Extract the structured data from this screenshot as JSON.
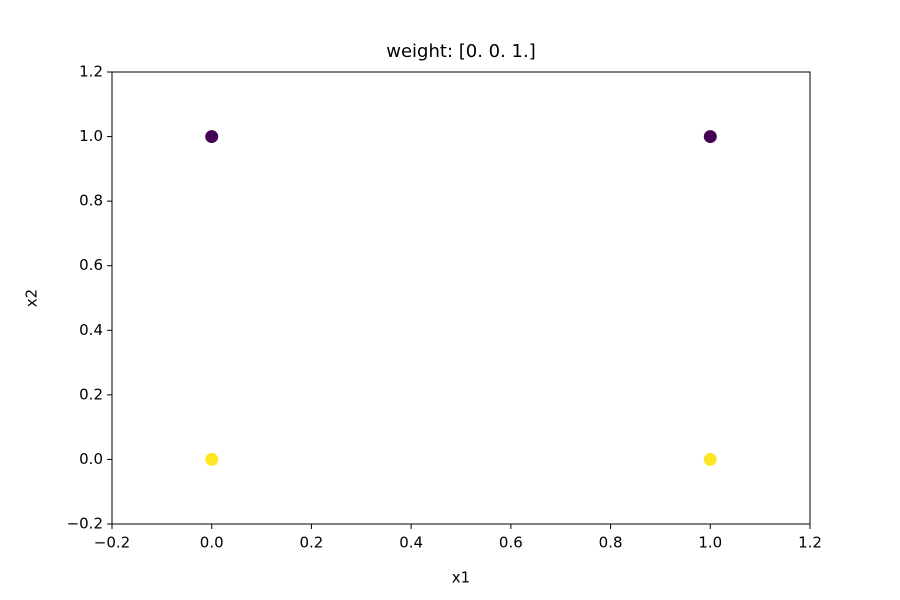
{
  "chart_data": {
    "type": "scatter",
    "title": "weight: [0. 0. 1.]",
    "x_label": "x1",
    "y_label": "x2",
    "x": [
      0,
      1,
      0,
      1
    ],
    "y": [
      1,
      1,
      0,
      0
    ],
    "colors": [
      "#440154",
      "#440154",
      "#fde725",
      "#fde725"
    ],
    "xlim": [
      -0.2,
      1.2
    ],
    "ylim": [
      -0.2,
      1.2
    ],
    "xticks": [
      {
        "value": -0.2,
        "label": "−0.2"
      },
      {
        "value": 0,
        "label": "0.0"
      },
      {
        "value": 0.2,
        "label": "0.2"
      },
      {
        "value": 0.4,
        "label": "0.4"
      },
      {
        "value": 0.6,
        "label": "0.6"
      },
      {
        "value": 0.8,
        "label": "0.8"
      },
      {
        "value": 1,
        "label": "1.0"
      },
      {
        "value": 1.2,
        "label": "1.2"
      }
    ],
    "yticks": [
      {
        "value": -0.2,
        "label": "−0.2"
      },
      {
        "value": 0,
        "label": "0.0"
      },
      {
        "value": 0.2,
        "label": "0.2"
      },
      {
        "value": 0.4,
        "label": "0.4"
      },
      {
        "value": 0.6,
        "label": "0.6"
      },
      {
        "value": 0.8,
        "label": "0.8"
      },
      {
        "value": 1,
        "label": "1.0"
      },
      {
        "value": 1.2,
        "label": "1.2"
      }
    ],
    "grid": false
  }
}
